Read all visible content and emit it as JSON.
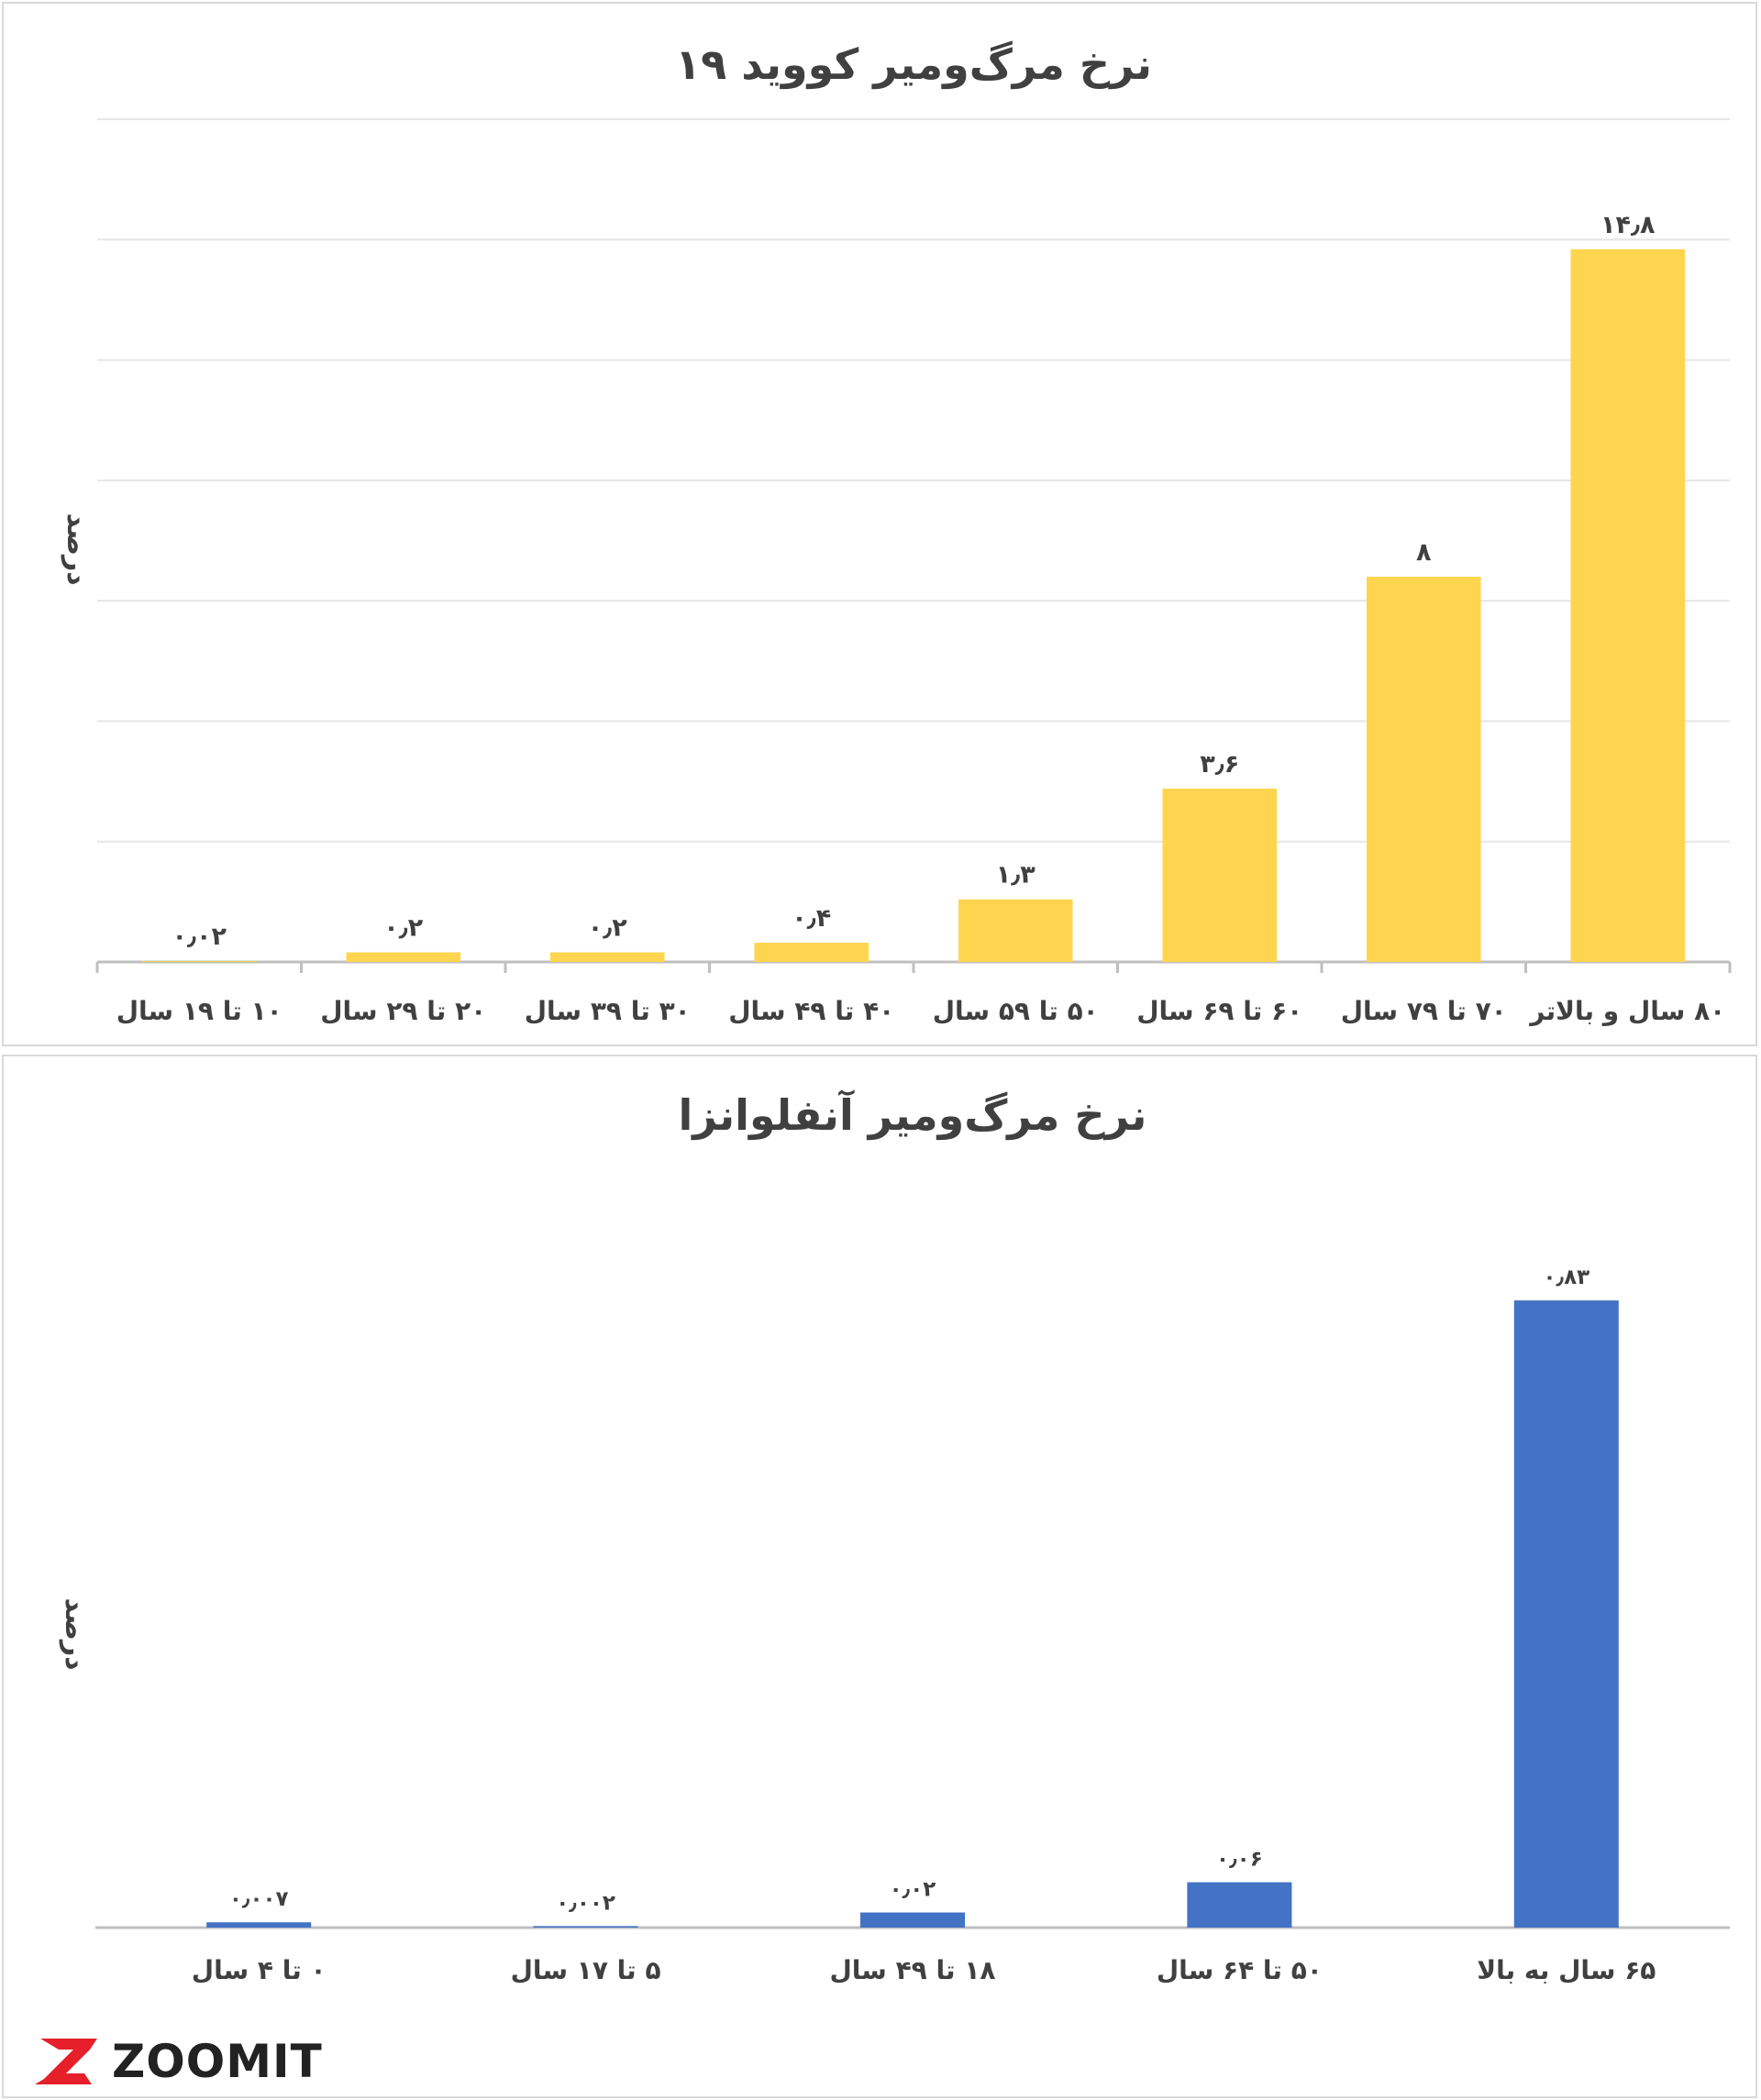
{
  "brand": {
    "name": "ZOOMIT",
    "accent": "#e5202a"
  },
  "chart_data": [
    {
      "type": "bar",
      "title": "نرخ مرگ‌ومیر کووید ۱۹",
      "ylabel": "درصد",
      "xlabel": "",
      "ylim": [
        0,
        17.5
      ],
      "grid": true,
      "color": "#ffd54f",
      "categories": [
        "۸۰ سال و بالاتر",
        "۷۰ تا ۷۹ سال",
        "۶۰ تا ۶۹ سال",
        "۵۰ تا ۵۹ سال",
        "۴۰ تا ۴۹ سال",
        "۳۰ تا ۳۹ سال",
        "۲۰ تا ۲۹ سال",
        "۱۰ تا ۱۹ سال"
      ],
      "values": [
        14.8,
        8,
        3.6,
        1.3,
        0.4,
        0.2,
        0.2,
        0.02
      ],
      "value_labels": [
        "۱۴٫۸",
        "۸",
        "۳٫۶",
        "۱٫۳",
        "۰٫۴",
        "۰٫۲",
        "۰٫۲",
        "۰٫۰۲"
      ]
    },
    {
      "type": "bar",
      "title": "نرخ مرگ‌ومیر آنفلوانزا",
      "ylabel": "درصد",
      "xlabel": "",
      "ylim": [
        0,
        1.0
      ],
      "grid": false,
      "color": "#4472c4",
      "categories": [
        "۶۵ سال به بالا",
        "۵۰ تا ۶۴ سال",
        "۱۸ تا ۴۹ سال",
        "۵ تا ۱۷ سال",
        "۰ تا ۴ سال"
      ],
      "values": [
        0.83,
        0.06,
        0.02,
        0.002,
        0.007
      ],
      "value_labels": [
        "۰٫۸۳",
        "۰٫۰۶",
        "۰٫۰۲",
        "۰٫۰۰۲",
        "۰٫۰۰۷"
      ]
    }
  ]
}
